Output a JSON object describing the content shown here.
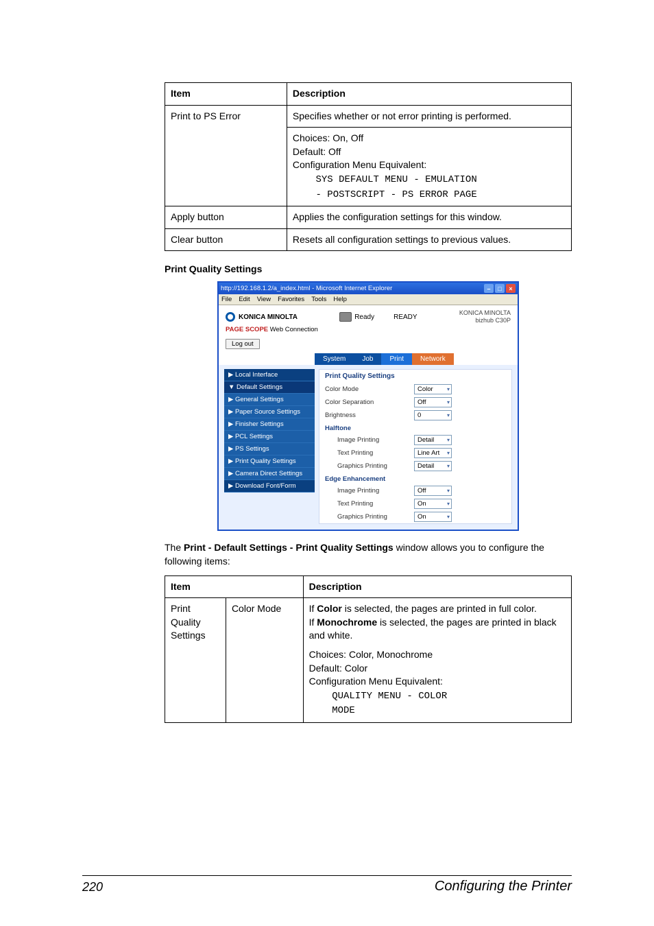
{
  "table1": {
    "headers": [
      "Item",
      "Description"
    ],
    "rows": [
      {
        "item": "Print to PS Error",
        "desc_line1": "Specifies whether or not error printing is performed.",
        "desc_para2_l1": "Choices: On, Off",
        "desc_para2_l2": "Default:  Off",
        "desc_para2_l3": "Configuration Menu Equivalent:",
        "desc_mono1": "    SYS DEFAULT MENU - EMULATION",
        "desc_mono2": "    - POSTSCRIPT - PS ERROR PAGE"
      },
      {
        "item": "Apply button",
        "desc": "Applies the configuration settings for this window."
      },
      {
        "item": "Clear button",
        "desc": "Resets all configuration settings to previous values."
      }
    ]
  },
  "section_title": "Print Quality Settings",
  "screenshot": {
    "title": "http://192.168.1.2/a_index.html - Microsoft Internet Explorer",
    "menubar": [
      "File",
      "Edit",
      "View",
      "Favorites",
      "Tools",
      "Help"
    ],
    "brand": "KONICA MINOLTA",
    "webc_prefix": "PAGE SCOPE",
    "webc_label": " Web Connection",
    "ready_label": "Ready",
    "ready_status": "READY",
    "right_l1": "KONICA MINOLTA",
    "right_l2": "bizhub C30P",
    "logout": "Log out",
    "tabs": {
      "system": "System",
      "job": "Job",
      "print": "Print",
      "network": "Network"
    },
    "left_items": [
      {
        "label": "▶ Local Interface",
        "cls": "dark"
      },
      {
        "label": "▼ Default Settings",
        "cls": "sel"
      },
      {
        "label": "▶ General Settings",
        "cls": ""
      },
      {
        "label": "▶ Paper Source Settings",
        "cls": ""
      },
      {
        "label": "▶ Finisher Settings",
        "cls": ""
      },
      {
        "label": "▶ PCL Settings",
        "cls": ""
      },
      {
        "label": "▶ PS Settings",
        "cls": ""
      },
      {
        "label": "▶ Print Quality Settings",
        "cls": ""
      },
      {
        "label": "▶ Camera Direct Settings",
        "cls": ""
      },
      {
        "label": "▶ Download Font/Form",
        "cls": "dark"
      }
    ],
    "main": {
      "title": "Print Quality Settings",
      "rows": [
        {
          "type": "row",
          "label": "Color Mode",
          "value": "Color"
        },
        {
          "type": "row",
          "label": "Color Separation",
          "value": "Off"
        },
        {
          "type": "row",
          "label": "Brightness",
          "value": "0"
        },
        {
          "type": "group",
          "label": "Halftone"
        },
        {
          "type": "sub",
          "label": "Image Printing",
          "value": "Detail"
        },
        {
          "type": "sub",
          "label": "Text Printing",
          "value": "Line Art"
        },
        {
          "type": "sub",
          "label": "Graphics Printing",
          "value": "Detail"
        },
        {
          "type": "group",
          "label": "Edge Enhancement"
        },
        {
          "type": "sub",
          "label": "Image Printing",
          "value": "Off"
        },
        {
          "type": "sub",
          "label": "Text Printing",
          "value": "On"
        },
        {
          "type": "sub",
          "label": "Graphics Printing",
          "value": "On"
        }
      ]
    }
  },
  "body_text_pre": "The ",
  "body_text_bold": "Print - Default Settings - Print Quality Settings",
  "body_text_post": " window allows you to configure the following items:",
  "table2": {
    "headers": [
      "Item",
      "",
      "Description"
    ],
    "item_col1": "Print Quality Settings",
    "item_col2": "Color Mode",
    "desc_l1_pre": "If ",
    "desc_l1_b": "Color",
    "desc_l1_post": " is selected, the pages are printed in full color.",
    "desc_l2_pre": "If ",
    "desc_l2_b": "Monochrome",
    "desc_l2_post": " is selected, the pages are printed in black and white.",
    "desc_p2_l1": "Choices: Color, Monochrome",
    "desc_p2_l2": "Default:  Color",
    "desc_p2_l3": "Configuration Menu Equivalent:",
    "desc_mono1": "    QUALITY MENU - COLOR",
    "desc_mono2": "    MODE"
  },
  "footer": {
    "page": "220",
    "title": "Configuring the Printer"
  }
}
